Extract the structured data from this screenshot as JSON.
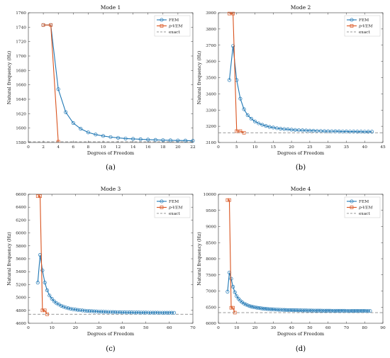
{
  "legend": {
    "fem": "FEM",
    "pvem": "p-VEM",
    "exact": "exact"
  },
  "colors": {
    "fem": "#1f77b4",
    "pvem": "#d9531e",
    "exact": "#777777"
  },
  "chart_data": [
    {
      "type": "line",
      "title": "Mode 1",
      "caption": "(a)",
      "xlabel": "Degrees of Freedom",
      "ylabel": "Natural frequency (Hz)",
      "xlim": [
        0,
        22
      ],
      "ylim": [
        1580,
        1760
      ],
      "xticks": [
        0,
        2,
        4,
        6,
        8,
        10,
        12,
        14,
        16,
        18,
        20,
        22
      ],
      "yticks": [
        1580,
        1600,
        1620,
        1640,
        1660,
        1680,
        1700,
        1720,
        1740,
        1760
      ],
      "legend_position": "top-right",
      "exact": 1581,
      "series": [
        {
          "name": "FEM",
          "x": [
            2,
            3,
            4,
            5,
            6,
            7,
            8,
            9,
            10,
            11,
            12,
            13,
            14,
            15,
            16,
            17,
            18,
            19,
            20,
            21,
            22
          ],
          "values": [
            1743,
            1743,
            1654,
            1622,
            1607,
            1599,
            1594,
            1591,
            1589,
            1587.5,
            1586.5,
            1585.5,
            1585,
            1584.5,
            1584,
            1583.6,
            1583.3,
            1583,
            1582.8,
            1582.6,
            1582.4
          ]
        },
        {
          "name": "p-VEM",
          "x": [
            2,
            3,
            4
          ],
          "values": [
            1743,
            1743,
            1581
          ]
        }
      ]
    },
    {
      "type": "line",
      "title": "Mode 2",
      "caption": "(b)",
      "xlabel": "Degrees of Freedom",
      "ylabel": "Natural frequency (Hz)",
      "xlim": [
        0,
        45
      ],
      "ylim": [
        3100,
        3900
      ],
      "xticks": [
        0,
        5,
        10,
        15,
        20,
        25,
        30,
        35,
        40,
        45
      ],
      "yticks": [
        3100,
        3200,
        3300,
        3400,
        3500,
        3600,
        3700,
        3800,
        3900
      ],
      "legend_position": "top-right",
      "exact": 3160,
      "series": [
        {
          "name": "FEM",
          "x": [
            3,
            4,
            5,
            6,
            7,
            8,
            9,
            10,
            11,
            12,
            13,
            14,
            15,
            16,
            17,
            18,
            19,
            20,
            21,
            22,
            23,
            24,
            25,
            26,
            27,
            28,
            29,
            30,
            31,
            32,
            33,
            34,
            35,
            36,
            37,
            38,
            39,
            40,
            41,
            42
          ],
          "values": [
            3485,
            3695,
            3485,
            3370,
            3305,
            3268,
            3246,
            3230,
            3218,
            3209,
            3202,
            3196,
            3192,
            3188,
            3185,
            3183,
            3181,
            3179,
            3177.5,
            3176,
            3175,
            3174,
            3173,
            3172.3,
            3171.6,
            3171,
            3170.4,
            3169.9,
            3169.4,
            3169,
            3168.6,
            3168.2,
            3167.9,
            3167.6,
            3167.3,
            3167,
            3166.8,
            3166.6,
            3166.4,
            3166.2
          ]
        },
        {
          "name": "p-VEM",
          "x": [
            3,
            4,
            5,
            6,
            7
          ],
          "values": [
            3895,
            3895,
            3170,
            3170,
            3160
          ]
        }
      ]
    },
    {
      "type": "line",
      "title": "Mode 3",
      "caption": "(c)",
      "xlabel": "Degrees of Freedom",
      "ylabel": "Natural frequency (Hz)",
      "xlim": [
        0,
        70
      ],
      "ylim": [
        4600,
        6600
      ],
      "xticks": [
        0,
        10,
        20,
        30,
        40,
        50,
        60,
        70
      ],
      "yticks": [
        4600,
        4800,
        5000,
        5200,
        5400,
        5600,
        5800,
        6000,
        6200,
        6400,
        6600
      ],
      "legend_position": "top-right",
      "exact": 4740,
      "series": [
        {
          "name": "FEM",
          "x": [
            4,
            5,
            6,
            7,
            8,
            9,
            10,
            11,
            12,
            13,
            14,
            15,
            16,
            17,
            18,
            19,
            20,
            21,
            22,
            23,
            24,
            25,
            26,
            27,
            28,
            29,
            30,
            31,
            32,
            33,
            34,
            35,
            36,
            37,
            38,
            39,
            40,
            41,
            42,
            43,
            44,
            45,
            46,
            47,
            48,
            49,
            50,
            51,
            52,
            53,
            54,
            55,
            56,
            57,
            58,
            59,
            60,
            61,
            62
          ],
          "values": [
            5230,
            5660,
            5420,
            5230,
            5110,
            5030,
            4980,
            4940,
            4910,
            4890,
            4870,
            4855,
            4843,
            4833,
            4825,
            4818,
            4812,
            4807,
            4802,
            4798,
            4795,
            4792,
            4789,
            4787,
            4785,
            4783,
            4781,
            4779.5,
            4778,
            4776.7,
            4775.5,
            4774.4,
            4773.4,
            4772.5,
            4771.7,
            4770.9,
            4770.2,
            4769.5,
            4768.9,
            4768.3,
            4767.8,
            4767.3,
            4766.8,
            4766.4,
            4766,
            4765.6,
            4765.2,
            4764.9,
            4764.6,
            4764.3,
            4764,
            4763.7,
            4763.5,
            4763.2,
            4763,
            4762.8,
            4762.6,
            4762.4,
            4762.2
          ]
        },
        {
          "name": "p-VEM",
          "x": [
            4,
            5,
            6,
            7,
            8
          ],
          "values": [
            6570,
            6570,
            4800,
            4800,
            4740
          ]
        }
      ]
    },
    {
      "type": "line",
      "title": "Mode 4",
      "caption": "(d)",
      "xlabel": "Degrees of Freedom",
      "ylabel": "Natural frequency (Hz)",
      "xlim": [
        0,
        90
      ],
      "ylim": [
        6000,
        10000
      ],
      "xticks": [
        0,
        10,
        20,
        30,
        40,
        50,
        60,
        70,
        80,
        90
      ],
      "yticks": [
        6000,
        6500,
        7000,
        7500,
        8000,
        8500,
        9000,
        9500,
        10000
      ],
      "legend_position": "top-right",
      "exact": 6330,
      "series": [
        {
          "name": "FEM",
          "x": [
            5,
            6,
            7,
            8,
            9,
            10,
            11,
            12,
            13,
            14,
            15,
            16,
            17,
            18,
            19,
            20,
            21,
            22,
            23,
            24,
            25,
            26,
            27,
            28,
            29,
            30,
            31,
            32,
            33,
            34,
            35,
            36,
            37,
            38,
            39,
            40,
            41,
            42,
            43,
            44,
            45,
            46,
            47,
            48,
            49,
            50,
            51,
            52,
            53,
            54,
            55,
            56,
            57,
            58,
            59,
            60,
            61,
            62,
            63,
            64,
            65,
            66,
            67,
            68,
            69,
            70,
            71,
            72,
            73,
            74,
            75,
            76,
            77,
            78,
            79,
            80,
            81,
            82,
            83
          ],
          "values": [
            6980,
            7570,
            7380,
            7130,
            6960,
            6840,
            6760,
            6700,
            6650,
            6610,
            6580,
            6555,
            6535,
            6518,
            6504,
            6492,
            6482,
            6473,
            6465,
            6458,
            6452,
            6446,
            6441,
            6437,
            6433,
            6429,
            6426,
            6423,
            6420,
            6417.5,
            6415,
            6413,
            6411,
            6409,
            6407.3,
            6405.7,
            6404.2,
            6402.8,
            6401.5,
            6400.3,
            6399.2,
            6398.1,
            6397.1,
            6396.2,
            6395.3,
            6394.5,
            6393.7,
            6393,
            6392.3,
            6391.6,
            6391,
            6390.4,
            6389.8,
            6389.3,
            6388.8,
            6388.3,
            6387.8,
            6387.4,
            6387,
            6386.6,
            6386.2,
            6385.8,
            6385.5,
            6385.2,
            6384.9,
            6384.6,
            6384.3,
            6384,
            6383.7,
            6383.5,
            6383.3,
            6383.1,
            6382.9,
            6382.7,
            6382.5,
            6382.3,
            6382.1,
            6381.9,
            6381.7
          ]
        },
        {
          "name": "p-VEM",
          "x": [
            5,
            6,
            7,
            8,
            9
          ],
          "values": [
            9820,
            9820,
            6480,
            6480,
            6330
          ]
        }
      ]
    }
  ]
}
